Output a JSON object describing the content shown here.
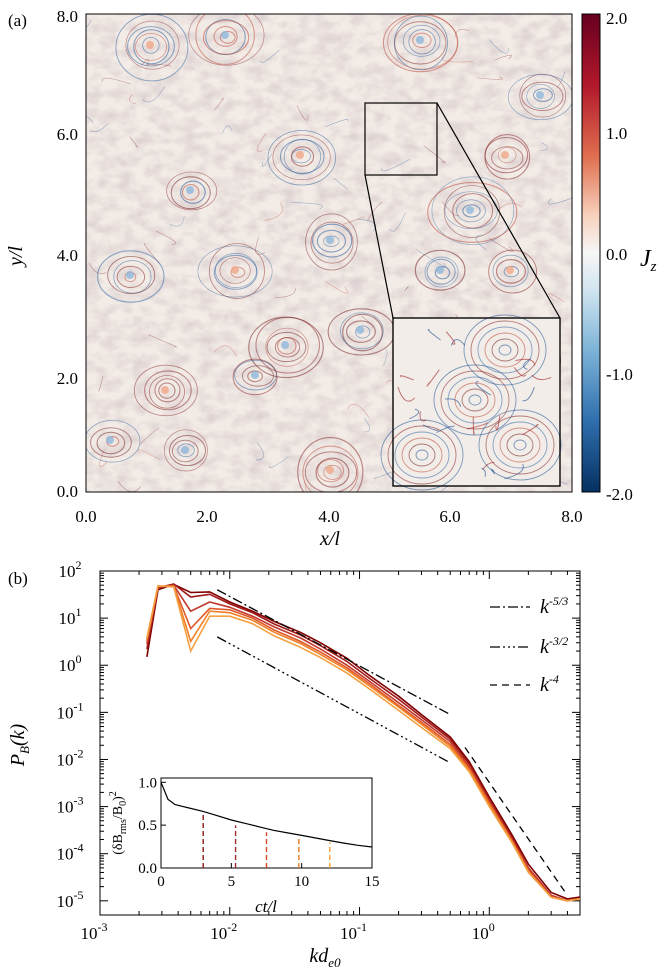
{
  "panel_a": {
    "label": "(a)",
    "xlabel": "x/l",
    "ylabel": "y/l",
    "x_ticks": [
      "0.0",
      "2.0",
      "4.0",
      "6.0",
      "8.0"
    ],
    "y_ticks": [
      "0.0",
      "2.0",
      "4.0",
      "6.0",
      "8.0"
    ],
    "colorbar_label": "J",
    "colorbar_label_sub": "z",
    "colorbar_ticks": [
      "2.0",
      "1.0",
      "0.0",
      "-1.0",
      "-2.0"
    ]
  },
  "panel_b": {
    "label": "(b)",
    "xlabel": "kd",
    "xlabel_sub": "e0",
    "ylabel": "P",
    "ylabel_sub": "B",
    "ylabel_tail": "(k)",
    "legend": [
      {
        "base": "k",
        "exp": "-5/3",
        "dash": "dashdot"
      },
      {
        "base": "k",
        "exp": "-3/2",
        "dash": "dashdotdotdot"
      },
      {
        "base": "k",
        "exp": "-4",
        "dash": "dashed"
      }
    ],
    "inset": {
      "xlabel": "ct/l",
      "ylabel": "(δB",
      "ylabel_sub": "rms",
      "ylabel_tail": "/B",
      "ylabel_sub2": "0",
      "ylabel_close": ")",
      "ylabel_sup": "2",
      "x_ticks": [
        "0",
        "5",
        "10",
        "15"
      ],
      "y_ticks": [
        "0.0",
        "0.5",
        "1.0"
      ]
    }
  },
  "colors": {
    "series": [
      "#7f0000",
      "#a01818",
      "#c0392b",
      "#e0582a",
      "#f07f25",
      "#f5a040"
    ],
    "markers": [
      "#8b1a1a",
      "#a52a2a",
      "#d2491e",
      "#e57d1e",
      "#f0a030"
    ]
  },
  "chart_data": [
    {
      "type": "heatmap",
      "title": "",
      "xlabel": "x/l",
      "ylabel": "y/l",
      "xlim": [
        0,
        8
      ],
      "ylim": [
        0,
        8
      ],
      "colorbar": {
        "label": "J_z",
        "range": [
          -2.0,
          2.0
        ],
        "colormap": "diverging blue-white-red"
      },
      "inset_zoom_region": {
        "x": [
          4.6,
          5.8
        ],
        "y": [
          5.3,
          6.5
        ]
      }
    },
    {
      "type": "line",
      "title": "",
      "xlabel": "kd_e0",
      "ylabel": "P_B(k)",
      "xscale": "log",
      "yscale": "log",
      "xlim": [
        0.001,
        5
      ],
      "ylim": [
        5e-06,
        100
      ],
      "k": [
        0.0023,
        0.0028,
        0.0037,
        0.005,
        0.007,
        0.01,
        0.015,
        0.022,
        0.035,
        0.05,
        0.08,
        0.12,
        0.2,
        0.3,
        0.5,
        0.7,
        1.0,
        1.5,
        2.0,
        3.0,
        4.0,
        5.0
      ],
      "series": [
        {
          "values": [
            1.5,
            40,
            52,
            35,
            36,
            22,
            14,
            8.5,
            5.0,
            3.0,
            1.4,
            0.6,
            0.22,
            0.09,
            0.03,
            0.009,
            0.0016,
            0.00025,
            6e-05,
            1.5e-05,
            1.1e-05,
            1.2e-05
          ]
        },
        {
          "values": [
            2.2,
            44,
            53,
            28,
            32,
            20,
            13,
            7.5,
            4.4,
            2.6,
            1.2,
            0.52,
            0.19,
            0.08,
            0.027,
            0.008,
            0.0014,
            0.00022,
            5e-05,
            1.3e-05,
            1e-05,
            1.1e-05
          ]
        },
        {
          "values": [
            2.8,
            46,
            50,
            14,
            22,
            17,
            11,
            6.5,
            3.8,
            2.2,
            1.0,
            0.45,
            0.16,
            0.07,
            0.024,
            0.0072,
            0.0013,
            0.0002,
            5e-05,
            1.3e-05,
            1e-05,
            1.1e-05
          ]
        },
        {
          "values": [
            3.2,
            47,
            48,
            6,
            16,
            15,
            10,
            5.6,
            3.2,
            1.9,
            0.88,
            0.4,
            0.14,
            0.062,
            0.021,
            0.0065,
            0.0012,
            0.00019,
            4.5e-05,
            1.2e-05,
            1e-05,
            1.1e-05
          ]
        },
        {
          "values": [
            3.6,
            48,
            47,
            3.2,
            14,
            13,
            9,
            5.0,
            2.9,
            1.7,
            0.8,
            0.36,
            0.13,
            0.056,
            0.019,
            0.006,
            0.0011,
            0.00018,
            4.2e-05,
            1.2e-05,
            1e-05,
            1.1e-05
          ]
        },
        {
          "values": [
            3.8,
            48,
            46,
            2.0,
            11,
            11,
            7.6,
            4.2,
            2.4,
            1.45,
            0.68,
            0.31,
            0.11,
            0.048,
            0.017,
            0.0055,
            0.001,
            0.00017,
            4e-05,
            1.2e-05,
            1e-05,
            1.1e-05
          ]
        }
      ],
      "reference_lines": [
        {
          "name": "k^-5/3",
          "x": [
            0.008,
            0.5
          ],
          "y": [
            40,
            0.09
          ]
        },
        {
          "name": "k^-3/2",
          "x": [
            0.008,
            0.5
          ],
          "y": [
            4.0,
            0.0085
          ]
        },
        {
          "name": "k^-4",
          "x": [
            0.65,
            3.8
          ],
          "y": [
            0.018,
            1.6e-05
          ]
        }
      ],
      "inset": {
        "type": "line",
        "xlabel": "ct/l",
        "ylabel": "(δB_rms/B_0)^2",
        "xlim": [
          0,
          15
        ],
        "ylim": [
          0,
          1.05
        ],
        "x": [
          0,
          0.2,
          0.5,
          1,
          1.5,
          2,
          3,
          4,
          5,
          6,
          7,
          8,
          9,
          10,
          11,
          12,
          13,
          14,
          15
        ],
        "y": [
          1.0,
          0.92,
          0.8,
          0.74,
          0.72,
          0.7,
          0.66,
          0.61,
          0.56,
          0.52,
          0.48,
          0.44,
          0.41,
          0.38,
          0.35,
          0.32,
          0.29,
          0.265,
          0.245
        ],
        "markers_x": [
          3.0,
          5.3,
          7.5,
          9.8,
          12.0
        ]
      }
    }
  ]
}
